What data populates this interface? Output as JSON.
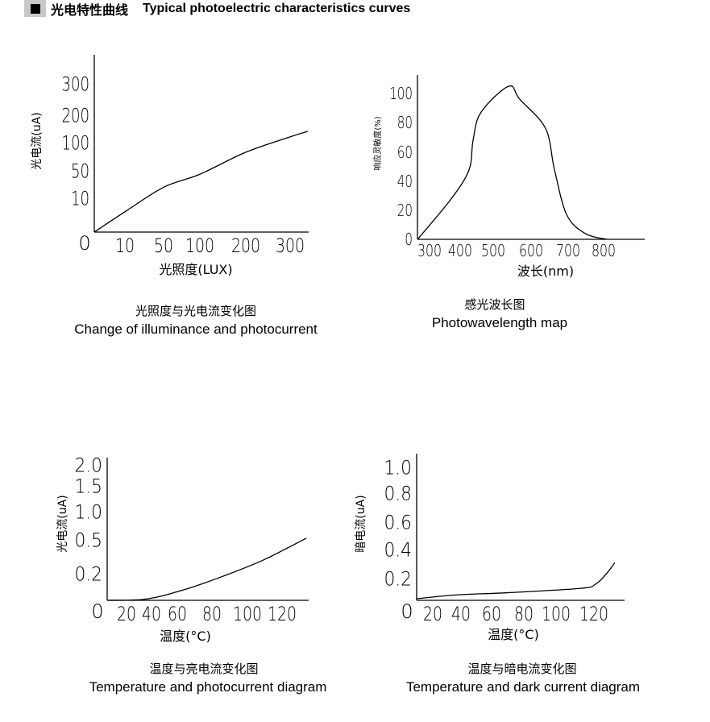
{
  "header": {
    "title_zh": "光电特性曲线",
    "title_en": "Typical photoelectric characteristics curves"
  },
  "chart_data": [
    {
      "type": "line",
      "title_zh": "光照度与光电流变化图",
      "title": "Change of illuminance and photocurrent",
      "xlabel": "光照度(LUX)",
      "ylabel": "光电流(uA)",
      "origin_label": "0",
      "x_ticks": [
        10,
        50,
        100,
        200,
        300
      ],
      "y_ticks": [
        10,
        50,
        100,
        200,
        300
      ],
      "x": [
        0,
        10,
        50,
        100,
        200,
        300,
        340
      ],
      "y": [
        0,
        6,
        26,
        45,
        83,
        121,
        141
      ],
      "grid": false
    },
    {
      "type": "line",
      "title_zh": "感光波长图",
      "title": "Photowavelength map",
      "xlabel": "波长(nm)",
      "ylabel": "响应灵敏度(%)",
      "x_ticks": [
        300,
        400,
        500,
        600,
        700,
        800
      ],
      "y_ticks": [
        0,
        20,
        40,
        60,
        80,
        100
      ],
      "x": [
        261,
        371,
        427,
        439,
        463,
        541,
        570,
        639,
        663,
        696,
        748,
        809
      ],
      "y": [
        0,
        28,
        48,
        68,
        87,
        105,
        96,
        76,
        48,
        17,
        4,
        0
      ],
      "grid": false
    },
    {
      "type": "line",
      "title_zh": "温度与亮电流变化图",
      "title": "Temperature and photocurrent diagram",
      "xlabel": "温度(°C)",
      "ylabel": "光电流(uA)",
      "origin_label": "0",
      "x_ticks": [
        20,
        40,
        60,
        80,
        100,
        120
      ],
      "y_ticks": [
        0.2,
        0.5,
        1.0,
        1.5,
        2.0
      ],
      "y_tick_labels": [
        "0.2",
        "0.5",
        "1.0",
        "1.5",
        "2.0"
      ],
      "x": [
        0,
        36,
        64,
        86,
        109,
        134
      ],
      "y": [
        0,
        0.01,
        0.08,
        0.18,
        0.32,
        0.53
      ],
      "grid": false
    },
    {
      "type": "line",
      "title_zh": "温度与暗电流变化图",
      "title": "Temperature and dark current diagram",
      "xlabel": "温度(°C)",
      "ylabel": "暗电流(uA)",
      "origin_label": "0",
      "x_ticks": [
        20,
        40,
        60,
        80,
        100,
        120
      ],
      "y_ticks": [
        0.2,
        0.4,
        0.6,
        0.8,
        1.0
      ],
      "y_tick_labels": [
        "0.2",
        "0.4",
        "0.6",
        "0.8",
        "1.0"
      ],
      "x": [
        0,
        37,
        70,
        113,
        121,
        127,
        131
      ],
      "y": [
        0.015,
        0.05,
        0.07,
        0.11,
        0.15,
        0.24,
        0.31
      ],
      "grid": false
    }
  ]
}
